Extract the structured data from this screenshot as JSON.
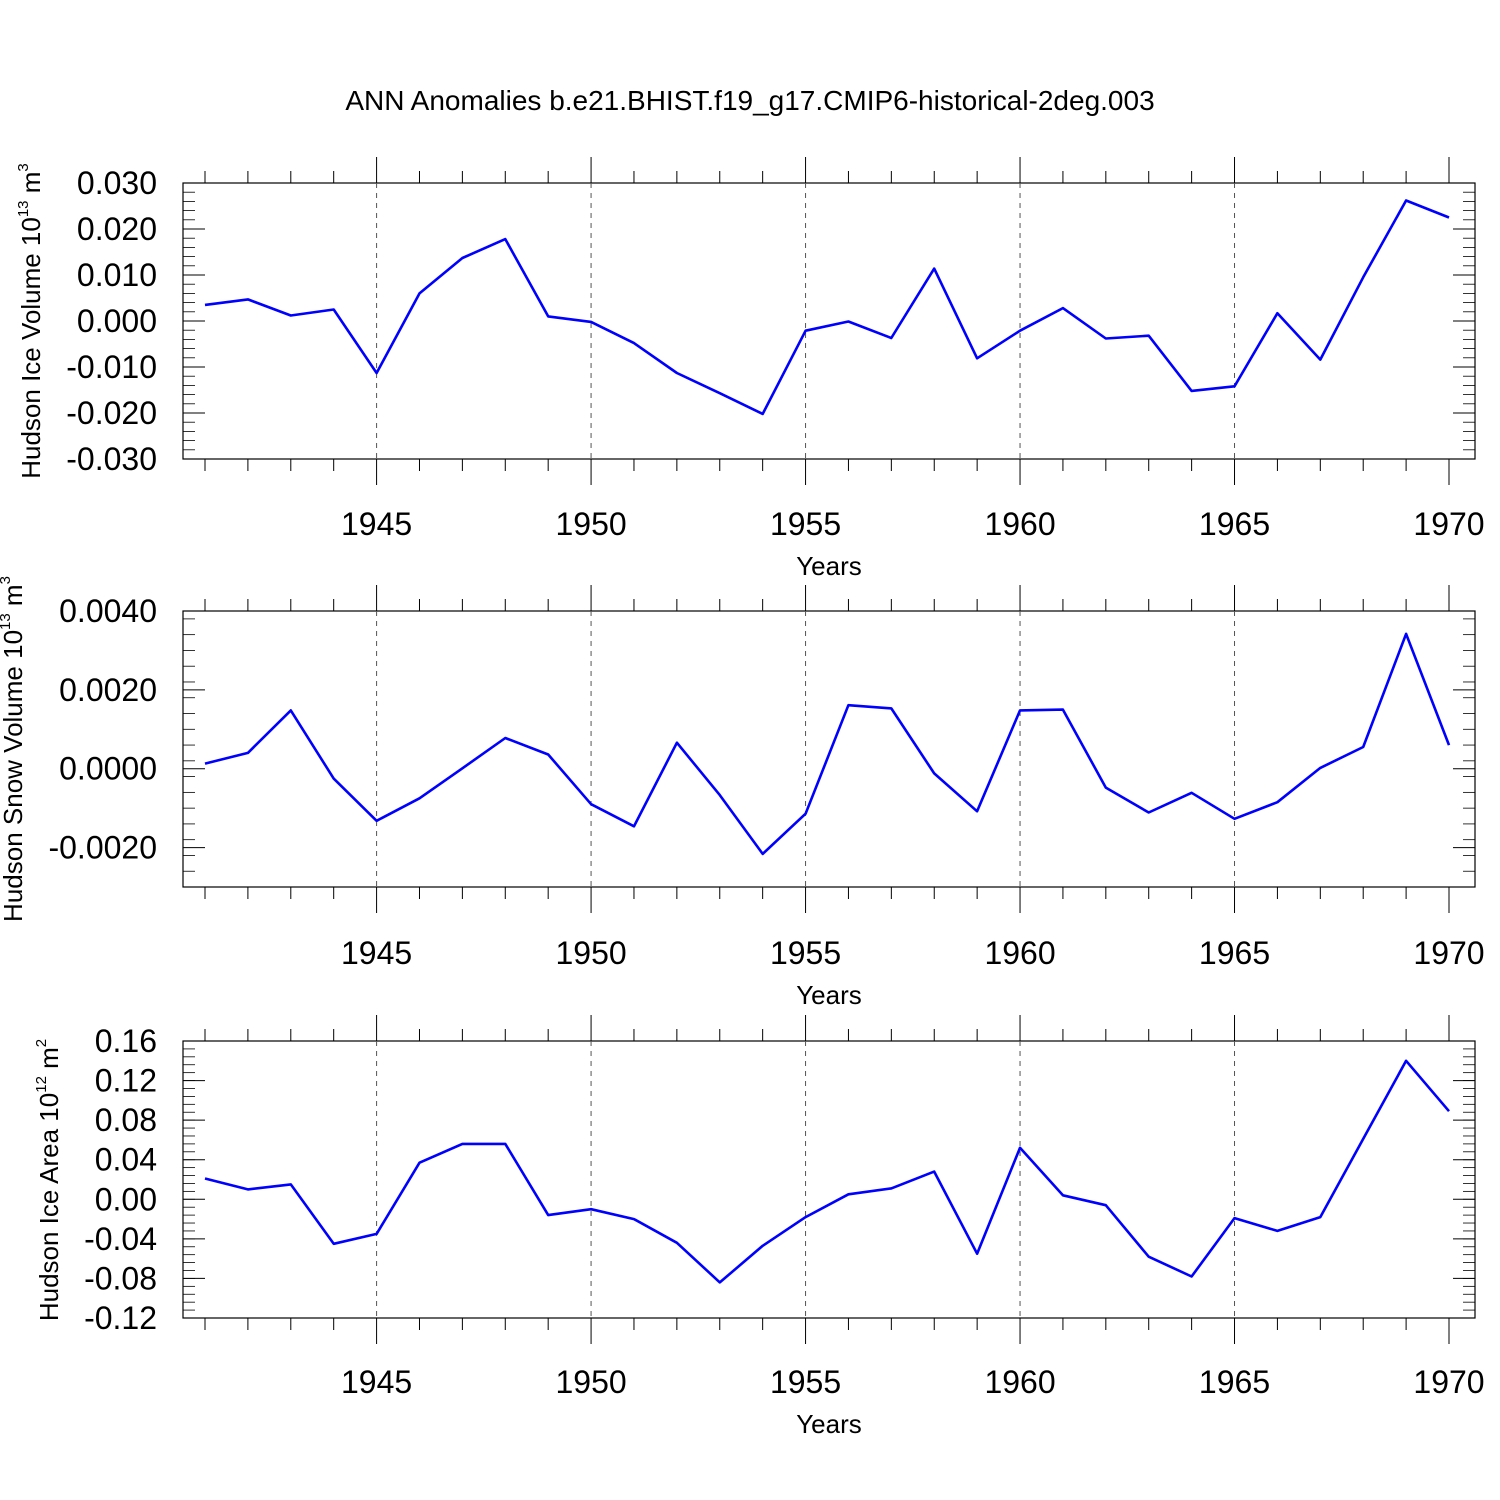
{
  "title": "ANN Anomalies b.e21.BHIST.f19_g17.CMIP6-historical-2deg.003",
  "colors": {
    "line": "#0000ff",
    "axis": "#000000",
    "gridline": "#555555"
  },
  "chart_data": [
    {
      "type": "line",
      "ylabel_main": "Hudson Ice Volume 10",
      "ylabel_exp": "13",
      "ylabel_unit": " m",
      "ylabel_unit_exp": "3",
      "xlabel": "Years",
      "xlim": [
        1941,
        1970
      ],
      "ylim": [
        -0.03,
        0.03
      ],
      "xticks": [
        "1945",
        "1950",
        "1955",
        "1960",
        "1965",
        "1970"
      ],
      "yticks": [
        "0.030",
        "0.020",
        "0.010",
        "0.000",
        "-0.010",
        "-0.020",
        "-0.030"
      ],
      "grid_x": "dashed at major ticks",
      "series": [
        {
          "x": [
            1941,
            1942,
            1943,
            1944,
            1945,
            1946,
            1947,
            1948,
            1949,
            1950,
            1951,
            1952,
            1953,
            1954,
            1955,
            1956,
            1957,
            1958,
            1959,
            1960,
            1961,
            1962,
            1963,
            1964,
            1965,
            1966,
            1967,
            1968,
            1969,
            1970
          ],
          "y": [
            0.0035,
            0.0047,
            0.0012,
            0.0025,
            -0.0113,
            0.006,
            0.0137,
            0.0178,
            0.001,
            -0.0002,
            -0.0048,
            -0.0113,
            -0.0157,
            -0.0202,
            -0.0021,
            -0.0001,
            -0.0037,
            0.0114,
            -0.0081,
            -0.0021,
            0.0028,
            -0.0038,
            -0.0032,
            -0.0152,
            -0.0142,
            0.0017,
            -0.0084,
            0.0095,
            0.0262,
            0.0225
          ]
        }
      ]
    },
    {
      "type": "line",
      "ylabel_main": "Hudson Snow Volume 10",
      "ylabel_exp": "13",
      "ylabel_unit": " m",
      "ylabel_unit_exp": "3",
      "xlabel": "Years",
      "xlim": [
        1941,
        1970
      ],
      "ylim": [
        -0.003,
        0.004
      ],
      "xticks": [
        "1945",
        "1950",
        "1955",
        "1960",
        "1965",
        "1970"
      ],
      "yticks": [
        "0.0040",
        "0.0020",
        "0.0000",
        "-0.0020"
      ],
      "grid_x": "dashed at major ticks",
      "series": [
        {
          "x": [
            1941,
            1942,
            1943,
            1944,
            1945,
            1946,
            1947,
            1948,
            1949,
            1950,
            1951,
            1952,
            1953,
            1954,
            1955,
            1956,
            1957,
            1958,
            1959,
            1960,
            1961,
            1962,
            1963,
            1964,
            1965,
            1966,
            1967,
            1968,
            1969,
            1970
          ],
          "y": [
            0.00013,
            0.0004,
            0.00148,
            -0.00025,
            -0.00132,
            -0.00075,
            1e-05,
            0.00078,
            0.00036,
            -0.0009,
            -0.00146,
            0.00066,
            -0.00067,
            -0.00216,
            -0.00114,
            0.00161,
            0.00153,
            -0.00012,
            -0.00108,
            0.00148,
            0.0015,
            -0.00048,
            -0.00111,
            -0.00061,
            -0.00127,
            -0.00085,
            2e-05,
            0.00055,
            0.00342,
            0.0006
          ]
        }
      ]
    },
    {
      "type": "line",
      "ylabel_main": "Hudson Ice Area 10",
      "ylabel_exp": "12",
      "ylabel_unit": " m",
      "ylabel_unit_exp": "2",
      "xlabel": "Years",
      "xlim": [
        1941,
        1970
      ],
      "ylim": [
        -0.12,
        0.16
      ],
      "xticks": [
        "1945",
        "1950",
        "1955",
        "1960",
        "1965",
        "1970"
      ],
      "yticks": [
        "0.16",
        "0.12",
        "0.08",
        "0.04",
        "0.00",
        "-0.04",
        "-0.08",
        "-0.12"
      ],
      "grid_x": "dashed at major ticks",
      "series": [
        {
          "x": [
            1941,
            1942,
            1943,
            1944,
            1945,
            1946,
            1947,
            1948,
            1949,
            1950,
            1951,
            1952,
            1953,
            1954,
            1955,
            1956,
            1957,
            1958,
            1959,
            1960,
            1961,
            1962,
            1963,
            1964,
            1965,
            1966,
            1967,
            1968,
            1969,
            1970
          ],
          "y": [
            0.021,
            0.01,
            0.015,
            -0.045,
            -0.035,
            0.037,
            0.056,
            0.056,
            -0.016,
            -0.01,
            -0.02,
            -0.044,
            -0.084,
            -0.047,
            -0.018,
            0.005,
            0.011,
            0.028,
            -0.055,
            0.052,
            0.004,
            -0.006,
            -0.058,
            -0.078,
            -0.019,
            -0.032,
            -0.018,
            0.061,
            0.14,
            0.089
          ]
        }
      ]
    }
  ]
}
